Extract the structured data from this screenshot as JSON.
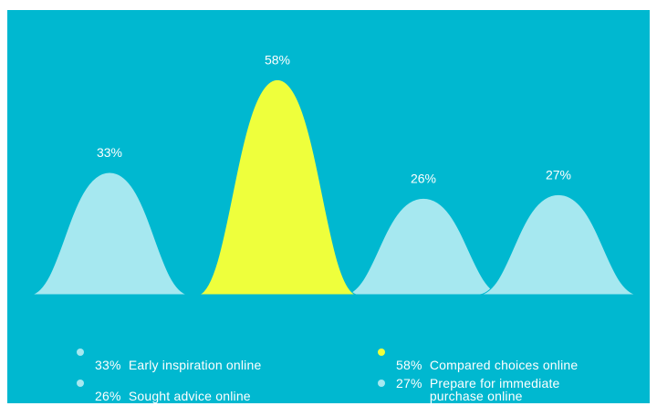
{
  "colors": {
    "background": "#00B8D0",
    "mound": "#A6E8F0",
    "highlight": "#EEFF3C",
    "text": "#FFFFFF"
  },
  "chart_data": {
    "type": "area",
    "categories": [
      "Early inspiration online",
      "Compared choices online",
      "Sought advice online",
      "Prepare for immediate purchase online"
    ],
    "values": [
      33,
      58,
      26,
      27
    ],
    "value_labels": [
      "33%",
      "58%",
      "26%",
      "27%"
    ],
    "highlight_index": 1,
    "ylim": [
      0,
      65
    ],
    "title": "",
    "xlabel": "",
    "ylabel": "",
    "grid": false,
    "legend_position": "bottom",
    "legend": [
      {
        "value": "33%",
        "label": "Early inspiration online"
      },
      {
        "value": "58%",
        "label": "Compared choices online"
      },
      {
        "value": "26%",
        "label": "Sought advice online"
      },
      {
        "value": "27%",
        "label": "Prepare for immediate\npurchase online"
      }
    ]
  }
}
